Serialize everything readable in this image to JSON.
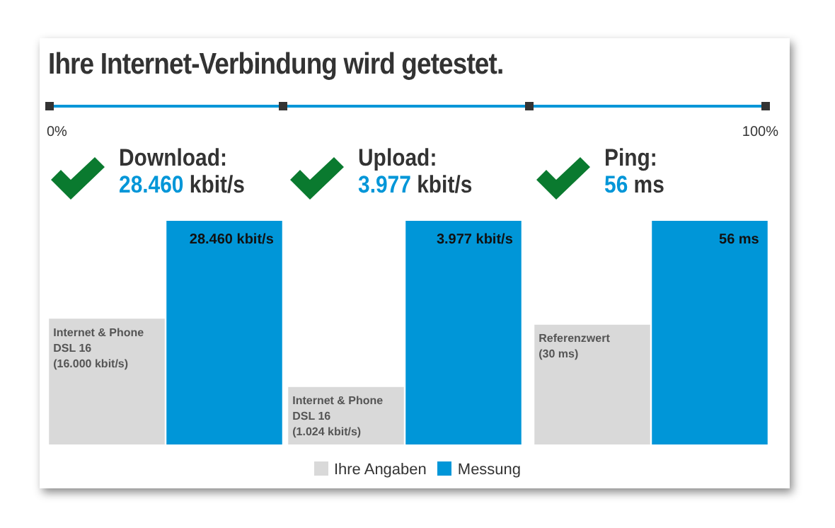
{
  "chart_data": [
    {
      "type": "bar",
      "title": "Download:",
      "subtitle": "28.460 kbit/s",
      "annotations": [
        "Ihre Internet-Verbindung wird getestet.",
        "0%",
        "100%"
      ],
      "categories": [
        null
      ],
      "legend": "bottom",
      "series": [
        {
          "name": "Ihre Angaben",
          "color": "#d9d9d9",
          "values": [
            16000
          ],
          "value_labels": [
            "Internet & Phone\nDSL 16\n(16.000 kbit/s)"
          ]
        },
        {
          "name": "Messung",
          "color": "#0096d8",
          "values": [
            28460
          ],
          "value_labels": [
            "28.460 kbit/s"
          ]
        }
      ]
    },
    {
      "type": "bar",
      "title": "Upload:",
      "subtitle": "3.977 kbit/s",
      "categories": [
        null
      ],
      "legend": "bottom",
      "series": [
        {
          "name": "Ihre Angaben",
          "color": "#d9d9d9",
          "values": [
            1024
          ],
          "value_labels": [
            "Internet & Phone\nDSL 16\n(1.024 kbit/s)"
          ]
        },
        {
          "name": "Messung",
          "color": "#0096d8",
          "values": [
            3977
          ],
          "value_labels": [
            "3.977 kbit/s"
          ]
        }
      ]
    },
    {
      "type": "bar",
      "title": "Ping:",
      "subtitle": "56 ms",
      "categories": [
        null
      ],
      "legend": "bottom",
      "series": [
        {
          "name": "Ihre Angaben",
          "color": "#d9d9d9",
          "values": [
            30
          ],
          "value_labels": [
            "Referenzwert\n(30 ms)"
          ]
        },
        {
          "name": "Messung",
          "color": "#0096d8",
          "values": [
            56
          ],
          "value_labels": [
            "56 ms"
          ]
        }
      ]
    }
  ]
}
